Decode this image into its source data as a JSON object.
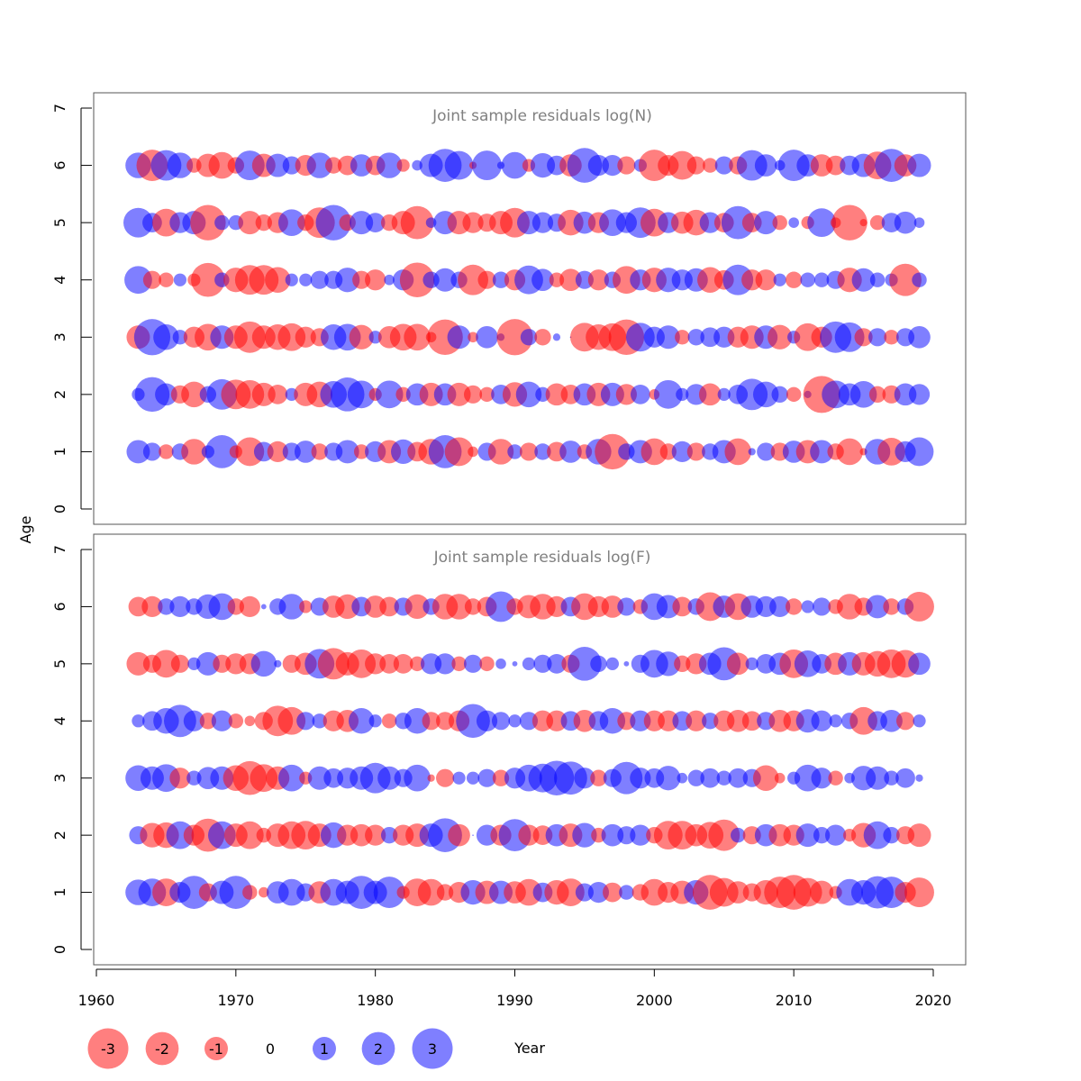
{
  "chart_data": {
    "type": "scatter",
    "subtype": "bubble",
    "xlabel": "Year",
    "ylabel": "Age",
    "xlim": [
      1960,
      2020
    ],
    "x_ticks": [
      1960,
      1970,
      1980,
      1990,
      2000,
      2010,
      2020
    ],
    "ylim": [
      0,
      7
    ],
    "y_ticks": [
      0,
      1,
      2,
      3,
      4,
      5,
      6,
      7
    ],
    "colors": {
      "positive": "#0000ff",
      "negative": "#ff0000",
      "alpha": 0.5
    },
    "grid": false,
    "legend": {
      "placement": "bottom-left",
      "entries": [
        {
          "label": "-3",
          "value": -3
        },
        {
          "label": "-2",
          "value": -2
        },
        {
          "label": "-1",
          "value": -1
        },
        {
          "label": "0",
          "value": 0
        },
        {
          "label": "1",
          "value": 1
        },
        {
          "label": "2",
          "value": 2
        },
        {
          "label": "3",
          "value": 3
        }
      ]
    },
    "years": [
      1963,
      1964,
      1965,
      1966,
      1967,
      1968,
      1969,
      1970,
      1971,
      1972,
      1973,
      1974,
      1975,
      1976,
      1977,
      1978,
      1979,
      1980,
      1981,
      1982,
      1983,
      1984,
      1985,
      1986,
      1987,
      1988,
      1989,
      1990,
      1991,
      1992,
      1993,
      1994,
      1995,
      1996,
      1997,
      1998,
      1999,
      2000,
      2001,
      2002,
      2003,
      2004,
      2005,
      2006,
      2007,
      2008,
      2009,
      2010,
      2011,
      2012,
      2013,
      2014,
      2015,
      2016,
      2017,
      2018,
      2019
    ],
    "ages": [
      1,
      2,
      3,
      4,
      5,
      6
    ],
    "panels": [
      {
        "title": "Joint sample residuals log(N)",
        "residuals": {
          "1": [
            1.0,
            0.6,
            -0.4,
            0.5,
            -1.2,
            0.3,
            2.0,
            -0.3,
            -1.5,
            0.7,
            -0.8,
            0.6,
            0.9,
            -0.5,
            0.6,
            1.0,
            -0.4,
            0.8,
            -1.0,
            1.1,
            -0.7,
            -1.2,
            2.0,
            -1.5,
            -0.2,
            0.6,
            -1.2,
            0.4,
            -0.6,
            0.5,
            -0.7,
            0.9,
            -0.4,
            1.2,
            -2.3,
            0.5,
            1.0,
            -1.3,
            -0.5,
            0.8,
            -0.6,
            0.5,
            1.0,
            -1.3,
            0.1,
            0.6,
            -0.6,
            0.9,
            -1.0,
            1.0,
            -0.5,
            -1.3,
            -0.1,
            1.2,
            -1.4,
            0.8,
            1.5
          ],
          "2": [
            0.3,
            2.2,
            0.9,
            -0.6,
            -1.2,
            0.5,
            1.7,
            -1.6,
            -1.5,
            -1.0,
            -0.7,
            0.3,
            -1.0,
            -1.2,
            1.3,
            2.1,
            1.4,
            -0.3,
            1.4,
            -0.4,
            0.9,
            -1.0,
            0.9,
            -1.0,
            -0.6,
            -0.4,
            0.7,
            -1.1,
            1.2,
            0.4,
            -0.9,
            -0.7,
            0.9,
            -1.0,
            1.0,
            -0.8,
            0.7,
            -0.2,
            1.5,
            0.3,
            0.8,
            -0.9,
            0.3,
            0.7,
            1.8,
            1.2,
            0.5,
            -0.4,
            0.1,
            -2.5,
            1.4,
            0.9,
            1.3,
            -0.5,
            -0.6,
            0.9,
            0.8
          ],
          "3": [
            -1.0,
            2.4,
            1.2,
            0.4,
            -0.8,
            -1.3,
            1.0,
            -1.0,
            -1.8,
            -1.0,
            -1.2,
            -1.4,
            -0.8,
            -0.6,
            1.2,
            1.3,
            -1.1,
            0.3,
            -0.9,
            -1.3,
            -1.3,
            -0.2,
            -2.3,
            1.0,
            -0.2,
            0.9,
            0.1,
            -2.4,
            0.5,
            -0.5,
            0.1,
            0.0,
            -1.5,
            -1.2,
            -1.4,
            -2.3,
            1.5,
            0.8,
            1.0,
            -0.4,
            0.5,
            0.7,
            0.8,
            -0.8,
            -1.0,
            1.0,
            -1.1,
            0.3,
            -1.4,
            -0.8,
            1.8,
            1.6,
            -0.6,
            0.6,
            -0.4,
            0.6,
            0.9
          ],
          "4": [
            1.4,
            -0.6,
            -0.4,
            0.3,
            -0.3,
            -2.1,
            0.4,
            -1.1,
            -1.6,
            -1.6,
            -1.2,
            0.3,
            0.3,
            0.6,
            0.6,
            1.1,
            -0.6,
            -0.8,
            0.2,
            0.8,
            -2.2,
            0.5,
            1.0,
            0.5,
            -1.7,
            -0.6,
            0.5,
            -0.8,
            1.5,
            0.9,
            -0.4,
            -0.9,
            0.6,
            -0.8,
            0.5,
            -1.4,
            0.8,
            -1.1,
            1.1,
            0.8,
            1.0,
            -1.2,
            -0.7,
            1.7,
            -0.8,
            -0.8,
            0.3,
            -0.5,
            0.4,
            0.4,
            0.6,
            -1.1,
            1.0,
            0.4,
            0.3,
            -1.9,
            0.4
          ],
          "5": [
            1.6,
            0.7,
            -1.4,
            0.8,
            1.0,
            -2.3,
            0.4,
            0.4,
            -1.0,
            -0.5,
            -0.8,
            1.3,
            -0.5,
            -1.7,
            2.3,
            -0.5,
            1.0,
            0.7,
            -0.5,
            -1.0,
            -2.0,
            0.2,
            1.0,
            -1.0,
            -0.8,
            -0.6,
            -1.0,
            -1.6,
            1.0,
            0.8,
            0.6,
            -1.2,
            0.9,
            -0.8,
            1.3,
            0.8,
            1.7,
            -1.4,
            0.8,
            -0.9,
            -1.2,
            0.8,
            -0.7,
            2.0,
            -0.7,
            1.0,
            -0.4,
            0.2,
            -0.3,
            1.5,
            -0.2,
            -2.3,
            -0.1,
            -0.4,
            0.7,
            0.9,
            0.2
          ],
          "6": [
            1.2,
            -1.8,
            1.7,
            1.2,
            -0.4,
            -1.0,
            -1.3,
            -0.5,
            1.6,
            -1.0,
            1.0,
            0.6,
            -0.8,
            1.2,
            -0.5,
            -0.7,
            0.9,
            -0.7,
            1.2,
            -0.3,
            0.2,
            1.0,
            2.0,
            1.5,
            -0.1,
            1.6,
            0.1,
            1.3,
            -0.3,
            1.1,
            0.7,
            -0.9,
            2.2,
            0.8,
            0.8,
            -0.6,
            0.3,
            -1.8,
            -0.8,
            -1.5,
            -0.6,
            -0.4,
            0.6,
            -0.6,
            1.7,
            0.9,
            0.2,
            1.8,
            0.9,
            -0.9,
            -0.7,
            0.7,
            1.0,
            -1.4,
            2.0,
            -0.9,
            1.0
          ]
        }
      },
      {
        "title": "Joint sample residuals log(F)",
        "residuals": {
          "1": [
            1.2,
            1.4,
            -1.4,
            0.8,
            2.0,
            -0.6,
            1.0,
            2.0,
            -0.4,
            -0.2,
            0.9,
            1.3,
            0.6,
            -0.9,
            1.3,
            1.0,
            2.0,
            1.0,
            1.8,
            -0.3,
            -1.4,
            -1.3,
            -0.5,
            -0.8,
            1.1,
            -1.0,
            1.0,
            -0.9,
            -1.3,
            0.7,
            -1.1,
            -1.4,
            0.6,
            0.8,
            -0.7,
            0.4,
            -0.5,
            -1.3,
            -0.8,
            -1.0,
            1.1,
            -2.2,
            -1.5,
            -0.9,
            -0.6,
            -1.1,
            -1.8,
            -2.2,
            -1.5,
            -1.0,
            -0.3,
            1.3,
            1.1,
            1.9,
            1.8,
            -0.8,
            -1.6
          ],
          "2": [
            0.6,
            -1.1,
            -1.2,
            1.4,
            -0.8,
            -2.0,
            1.4,
            -1.0,
            -1.4,
            -0.4,
            -1.0,
            -1.4,
            -1.5,
            -1.0,
            1.2,
            -0.8,
            -0.9,
            -0.8,
            0.5,
            -0.8,
            -1.0,
            1.0,
            2.1,
            -0.9,
            0.0,
            0.8,
            -0.8,
            1.9,
            -0.8,
            -0.7,
            0.9,
            -1.0,
            1.1,
            -0.4,
            0.9,
            0.6,
            0.8,
            -0.5,
            -1.5,
            -1.5,
            -0.9,
            -1.3,
            -1.8,
            0.4,
            -0.6,
            0.9,
            -0.9,
            -0.8,
            1.0,
            0.5,
            0.8,
            -0.3,
            -1.1,
            1.4,
            0.5,
            -0.6,
            -1.0
          ],
          "3": [
            1.2,
            1.0,
            1.4,
            -0.8,
            0.4,
            0.9,
            1.0,
            -1.2,
            -2.1,
            -1.4,
            -1.0,
            1.3,
            -0.3,
            1.0,
            0.7,
            0.8,
            1.0,
            1.7,
            1.0,
            0.6,
            1.3,
            -0.1,
            -0.6,
            0.3,
            0.3,
            0.6,
            -0.5,
            0.8,
            1.3,
            1.5,
            2.2,
            2.0,
            0.8,
            -0.5,
            0.6,
            1.9,
            0.8,
            0.7,
            1.1,
            0.2,
            0.5,
            0.7,
            0.4,
            0.7,
            0.6,
            -1.2,
            -0.2,
            0.3,
            1.3,
            0.8,
            -0.4,
            0.2,
            1.1,
            1.0,
            0.4,
            0.7,
            0.1
          ],
          "4": [
            0.3,
            0.7,
            1.2,
            1.9,
            0.8,
            -0.5,
            0.8,
            -0.4,
            -0.2,
            -0.6,
            -1.7,
            -1.4,
            0.6,
            0.4,
            -0.8,
            -0.9,
            1.2,
            0.3,
            -0.4,
            0.5,
            1.2,
            -0.6,
            -0.6,
            -0.8,
            2.1,
            0.8,
            0.6,
            0.3,
            0.6,
            -0.8,
            -0.8,
            0.7,
            -0.9,
            0.7,
            1.2,
            -0.6,
            0.8,
            -0.8,
            -0.8,
            0.7,
            -0.8,
            0.5,
            -0.8,
            -0.9,
            -0.7,
            0.6,
            -0.9,
            -0.8,
            1.0,
            0.8,
            0.3,
            0.5,
            -1.4,
            0.7,
            0.9,
            -0.6,
            0.3
          ],
          "5": [
            -1.0,
            -0.6,
            -1.4,
            -0.6,
            0.3,
            1.0,
            -0.6,
            -0.8,
            -0.8,
            1.2,
            0.1,
            -0.6,
            -0.9,
            1.6,
            -1.8,
            -1.0,
            -1.5,
            -0.8,
            -0.7,
            -0.7,
            -0.4,
            0.8,
            0.8,
            -0.4,
            0.6,
            -0.4,
            0.2,
            0.05,
            0.3,
            0.6,
            0.7,
            -0.6,
            2.1,
            0.5,
            0.3,
            0.05,
            0.6,
            1.4,
            1.1,
            -0.5,
            -0.8,
            0.9,
            2.0,
            -0.9,
            0.3,
            0.7,
            0.9,
            -1.5,
            1.3,
            0.7,
            -0.9,
            1.0,
            -1.0,
            -1.2,
            -1.5,
            -1.4,
            0.9
          ],
          "6": [
            -0.7,
            -0.8,
            0.5,
            0.8,
            0.5,
            1.1,
            1.3,
            -0.5,
            -0.8,
            0.05,
            0.5,
            1.2,
            -0.3,
            0.6,
            -0.9,
            -1.1,
            0.7,
            -0.9,
            -0.7,
            0.6,
            -1.1,
            0.5,
            -1.2,
            -1.2,
            -0.5,
            -0.7,
            1.7,
            -0.5,
            -1.0,
            -1.2,
            -0.8,
            0.7,
            -1.3,
            -0.8,
            -0.9,
            0.6,
            -0.4,
            1.3,
            1.0,
            -0.7,
            0.5,
            -1.5,
            0.9,
            -1.3,
            0.9,
            0.8,
            0.8,
            -0.5,
            0.3,
            0.6,
            -0.4,
            -1.2,
            -0.6,
            1.0,
            -0.5,
            0.5,
            -1.6
          ]
        }
      }
    ]
  }
}
